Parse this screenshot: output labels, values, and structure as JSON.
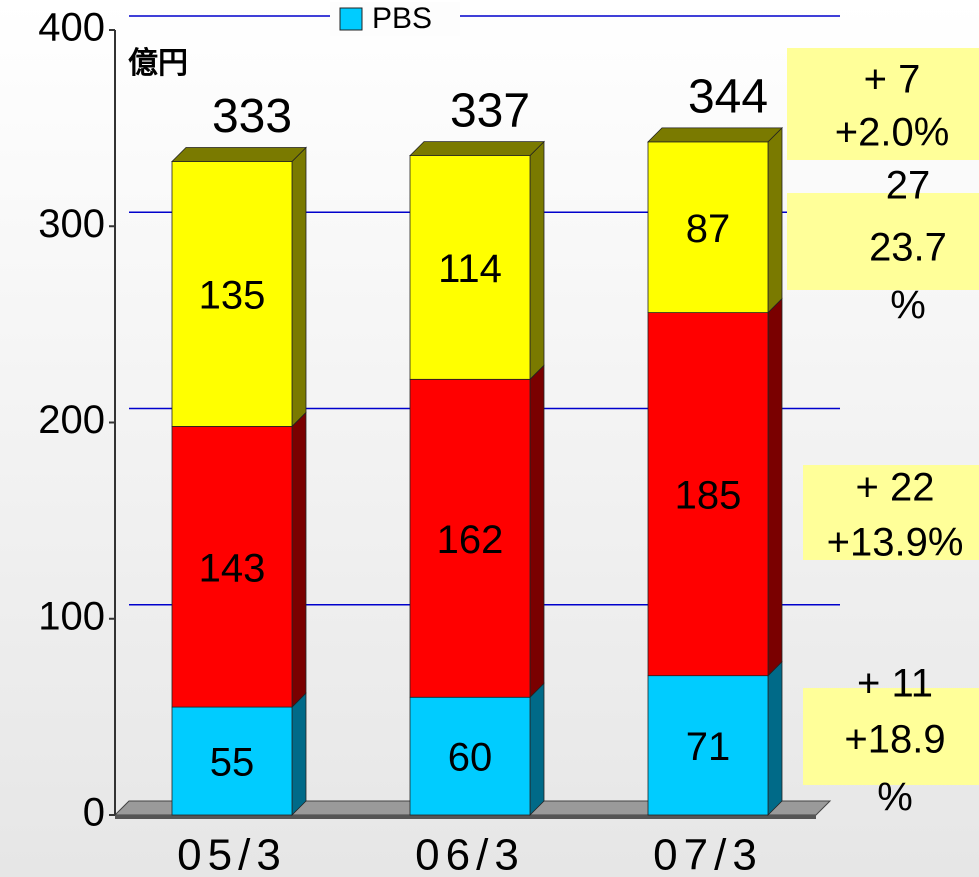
{
  "chart_data": {
    "type": "bar",
    "stacked": true,
    "unit_label": "億円",
    "categories": [
      "05/3",
      "06/3",
      "07/3"
    ],
    "series": [
      {
        "name": "PBS",
        "color": "#00ccff",
        "side_color": "#006a88",
        "values": [
          55,
          60,
          71
        ]
      },
      {
        "color": "#ff0000",
        "side_color": "#7a0000",
        "values": [
          143,
          162,
          185
        ]
      },
      {
        "color": "#ffff00",
        "side_color": "#7a7a00",
        "values": [
          135,
          114,
          87
        ]
      }
    ],
    "totals": [
      333,
      337,
      344
    ],
    "ylim": [
      0,
      400
    ],
    "yticks": [
      0,
      100,
      200,
      300,
      400
    ],
    "grid": true,
    "grid_color": "#0000cc",
    "annotations": [
      {
        "lines": [
          "+ 7",
          "+2.0%"
        ]
      },
      {
        "lines": [
          "27",
          "23.7",
          "%"
        ]
      },
      {
        "lines": [
          "+ 22",
          "+13.9%"
        ]
      },
      {
        "lines": [
          "+ 11",
          "+18.9",
          "%"
        ]
      }
    ]
  }
}
